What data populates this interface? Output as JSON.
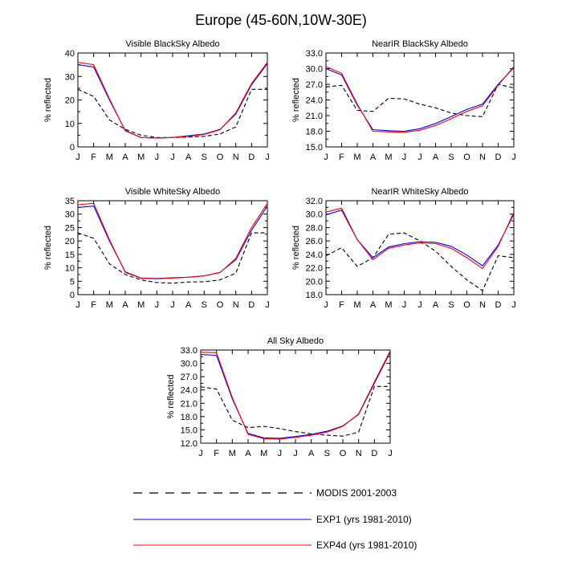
{
  "figure_title": "Europe (45-60N,10W-30E)",
  "months": [
    "J",
    "F",
    "M",
    "A",
    "M",
    "J",
    "J",
    "A",
    "S",
    "O",
    "N",
    "D",
    "J"
  ],
  "legend": [
    {
      "key": "modis",
      "label": "MODIS 2001-2003",
      "color": "#000000",
      "dash": true
    },
    {
      "key": "exp1",
      "label": "EXP1 (yrs 1981-2010)",
      "color": "#0000ff",
      "dash": false
    },
    {
      "key": "exp4d",
      "label": "EXP4d (yrs 1981-2010)",
      "color": "#ff0000",
      "dash": false
    }
  ],
  "chart_data": [
    {
      "type": "line",
      "title": "Visible BlackSky Albedo",
      "ylabel": "% reflected",
      "ylim": [
        0,
        40
      ],
      "yticks": [
        0,
        10,
        20,
        30,
        40
      ],
      "ytick_labels": [
        "0",
        "10",
        "20",
        "30",
        "40"
      ],
      "series": [
        {
          "key": "modis",
          "name": "MODIS 2001-2003",
          "values": [
            24.5,
            21.5,
            11.5,
            7.5,
            5.0,
            4.0,
            4.0,
            4.2,
            4.5,
            5.5,
            8.5,
            24.5,
            24.5
          ]
        },
        {
          "key": "exp1",
          "name": "EXP1 (yrs 1981-2010)",
          "values": [
            35.0,
            34.0,
            20.0,
            7.0,
            4.0,
            3.8,
            4.0,
            4.8,
            5.5,
            7.5,
            14.0,
            26.5,
            35.5
          ]
        },
        {
          "key": "exp4d",
          "name": "EXP4d (yrs 1981-2010)",
          "values": [
            36.0,
            35.0,
            20.5,
            6.8,
            4.0,
            3.8,
            4.0,
            4.5,
            5.3,
            7.3,
            14.5,
            27.0,
            36.0
          ]
        }
      ]
    },
    {
      "type": "line",
      "title": "NearIR BlackSky Albedo",
      "ylabel": "% reflected",
      "ylim": [
        15,
        33
      ],
      "yticks": [
        15,
        18,
        21,
        24,
        27,
        30,
        33
      ],
      "ytick_labels": [
        "15.0",
        "18.0",
        "21.0",
        "24.0",
        "27.0",
        "30.0",
        "33.0"
      ],
      "series": [
        {
          "key": "modis",
          "name": "MODIS 2001-2003",
          "values": [
            26.5,
            26.8,
            22.0,
            21.8,
            24.3,
            24.2,
            23.2,
            22.5,
            21.5,
            21.0,
            20.8,
            27.0,
            26.3
          ]
        },
        {
          "key": "exp1",
          "name": "EXP1 (yrs 1981-2010)",
          "values": [
            30.0,
            28.8,
            23.0,
            18.3,
            18.1,
            18.0,
            18.5,
            19.5,
            20.8,
            22.2,
            23.2,
            27.0,
            30.2
          ]
        },
        {
          "key": "exp4d",
          "name": "EXP4d (yrs 1981-2010)",
          "values": [
            30.4,
            29.1,
            23.2,
            18.0,
            17.9,
            17.8,
            18.2,
            19.1,
            20.4,
            21.8,
            22.9,
            26.8,
            30.4
          ]
        }
      ]
    },
    {
      "type": "line",
      "title": "Visible WhiteSky Albedo",
      "ylabel": "% reflected",
      "ylim": [
        0,
        35
      ],
      "yticks": [
        0,
        5,
        10,
        15,
        20,
        25,
        30,
        35
      ],
      "ytick_labels": [
        "0",
        "5",
        "10",
        "15",
        "20",
        "25",
        "30",
        "35"
      ],
      "series": [
        {
          "key": "modis",
          "name": "MODIS 2001-2003",
          "values": [
            23.0,
            21.0,
            11.5,
            7.5,
            5.5,
            4.5,
            4.3,
            4.7,
            4.8,
            5.5,
            8.0,
            23.0,
            23.0
          ]
        },
        {
          "key": "exp1",
          "name": "EXP1 (yrs 1981-2010)",
          "values": [
            32.5,
            33.0,
            20.0,
            8.5,
            6.2,
            6.0,
            6.3,
            6.5,
            7.0,
            8.3,
            13.0,
            24.0,
            33.0
          ]
        },
        {
          "key": "exp4d",
          "name": "EXP4d (yrs 1981-2010)",
          "values": [
            33.5,
            34.0,
            20.5,
            8.3,
            6.1,
            5.9,
            6.2,
            6.5,
            7.0,
            8.2,
            13.5,
            25.0,
            34.0
          ]
        }
      ]
    },
    {
      "type": "line",
      "title": "NearIR WhiteSky Albedo",
      "ylabel": "% reflected",
      "ylim": [
        18,
        32
      ],
      "yticks": [
        18,
        20,
        22,
        24,
        26,
        28,
        30,
        32
      ],
      "ytick_labels": [
        "18.0",
        "20.0",
        "22.0",
        "24.0",
        "26.0",
        "28.0",
        "30.0",
        "32.0"
      ],
      "series": [
        {
          "key": "modis",
          "name": "MODIS 2001-2003",
          "values": [
            23.8,
            25.0,
            22.2,
            23.5,
            27.0,
            27.2,
            26.0,
            24.5,
            22.2,
            20.2,
            18.6,
            23.8,
            23.5
          ]
        },
        {
          "key": "exp1",
          "name": "EXP1 (yrs 1981-2010)",
          "values": [
            29.9,
            30.6,
            26.2,
            23.5,
            25.1,
            25.6,
            25.9,
            25.8,
            25.2,
            23.9,
            22.3,
            25.4,
            30.0
          ]
        },
        {
          "key": "exp4d",
          "name": "EXP4d (yrs 1981-2010)",
          "values": [
            30.3,
            30.9,
            26.2,
            23.2,
            24.9,
            25.4,
            25.7,
            25.6,
            24.9,
            23.5,
            21.9,
            25.2,
            30.3
          ]
        }
      ]
    },
    {
      "type": "line",
      "title": "All Sky Albedo",
      "ylabel": "% reflected",
      "ylim": [
        12,
        33
      ],
      "yticks": [
        12,
        15,
        18,
        21,
        24,
        27,
        30,
        33
      ],
      "ytick_labels": [
        "12.0",
        "15.0",
        "18.0",
        "21.0",
        "24.0",
        "27.0",
        "30.0",
        "33.0"
      ],
      "series": [
        {
          "key": "modis",
          "name": "MODIS 2001-2003",
          "values": [
            24.7,
            24.2,
            17.2,
            15.5,
            15.8,
            15.3,
            14.6,
            14.1,
            13.8,
            13.6,
            14.5,
            24.8,
            24.8
          ]
        },
        {
          "key": "exp1",
          "name": "EXP1 (yrs 1981-2010)",
          "values": [
            32.0,
            31.8,
            22.0,
            14.2,
            13.2,
            13.1,
            13.5,
            14.0,
            14.7,
            15.9,
            18.5,
            25.5,
            32.5
          ]
        },
        {
          "key": "exp4d",
          "name": "EXP4d (yrs 1981-2010)",
          "values": [
            32.5,
            32.4,
            22.3,
            14.0,
            13.0,
            12.9,
            13.3,
            13.8,
            14.5,
            15.8,
            18.6,
            25.8,
            32.8
          ]
        }
      ]
    }
  ]
}
